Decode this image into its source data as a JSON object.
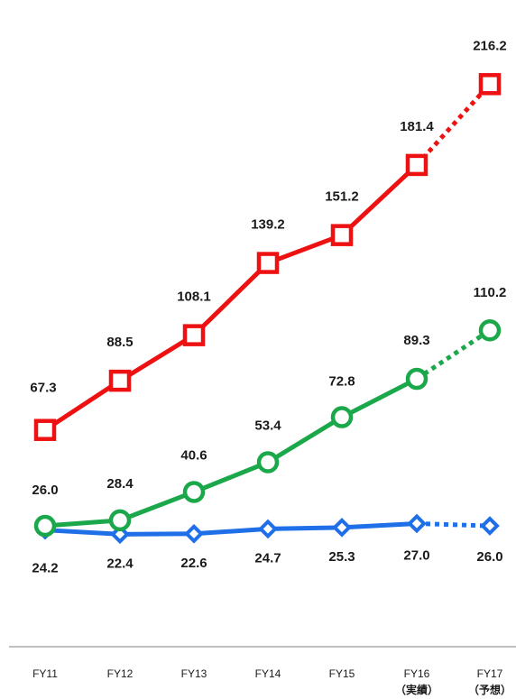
{
  "chart_data": {
    "type": "line",
    "title": "",
    "xlabel": "",
    "ylabel": "",
    "legend": "none",
    "grid": false,
    "categories": [
      {
        "label": "FY11",
        "sub": ""
      },
      {
        "label": "FY12",
        "sub": ""
      },
      {
        "label": "FY13",
        "sub": ""
      },
      {
        "label": "FY14",
        "sub": ""
      },
      {
        "label": "FY15",
        "sub": ""
      },
      {
        "label": "FY16",
        "sub": "（実績）"
      },
      {
        "label": "FY17",
        "sub": "（予想）"
      }
    ],
    "series": [
      {
        "color": "#ee1111",
        "marker": "square",
        "values": [
          67.3,
          88.5,
          108.1,
          139.2,
          151.2,
          181.4,
          216.2
        ],
        "labels": [
          "67.3",
          "88.5",
          "108.1",
          "139.2",
          "151.2",
          "181.4",
          "216.2"
        ]
      },
      {
        "color": "#1aa84a",
        "marker": "circle",
        "values": [
          26.0,
          28.4,
          40.6,
          53.4,
          72.8,
          89.3,
          110.2
        ],
        "labels": [
          "26.0",
          "28.4",
          "40.6",
          "53.4",
          "72.8",
          "89.3",
          "110.2"
        ]
      },
      {
        "color": "#1f6fe8",
        "marker": "diamond",
        "values": [
          24.2,
          22.4,
          22.6,
          24.7,
          25.3,
          27.0,
          26.0
        ],
        "labels": [
          "24.2",
          "22.4",
          "22.6",
          "24.7",
          "25.3",
          "27.0",
          "26.0"
        ]
      }
    ],
    "forecast_from_index": 5,
    "axis_color": "#9a9a9a"
  }
}
